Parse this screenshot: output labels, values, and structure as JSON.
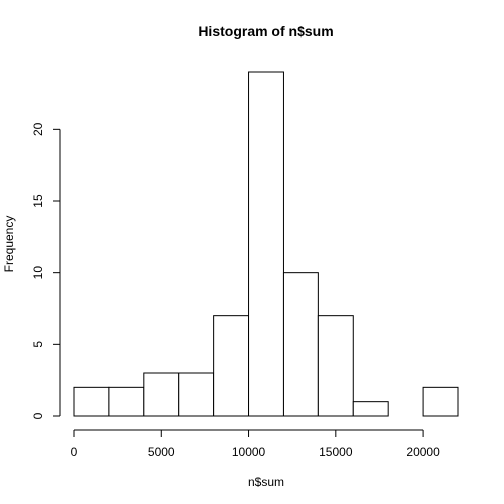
{
  "chart_data": {
    "type": "bar",
    "title": "Histogram of n$sum",
    "xlabel": "n$sum",
    "ylabel": "Frequency",
    "xlim": [
      0,
      22000
    ],
    "ylim": [
      0,
      24
    ],
    "bins": [
      {
        "start": 0,
        "end": 2000,
        "count": 2
      },
      {
        "start": 2000,
        "end": 4000,
        "count": 2
      },
      {
        "start": 4000,
        "end": 6000,
        "count": 3
      },
      {
        "start": 6000,
        "end": 8000,
        "count": 3
      },
      {
        "start": 8000,
        "end": 10000,
        "count": 7
      },
      {
        "start": 10000,
        "end": 12000,
        "count": 24
      },
      {
        "start": 12000,
        "end": 14000,
        "count": 10
      },
      {
        "start": 14000,
        "end": 16000,
        "count": 7
      },
      {
        "start": 16000,
        "end": 18000,
        "count": 1
      },
      {
        "start": 18000,
        "end": 20000,
        "count": 0
      },
      {
        "start": 20000,
        "end": 22000,
        "count": 2
      }
    ],
    "x_ticks": [
      0,
      5000,
      10000,
      15000,
      20000
    ],
    "y_ticks": [
      0,
      5,
      10,
      15,
      20
    ],
    "grid": false,
    "colors": {
      "bar_fill": "#ffffff",
      "bar_stroke": "#000000",
      "axis": "#000000",
      "text": "#000000"
    }
  }
}
